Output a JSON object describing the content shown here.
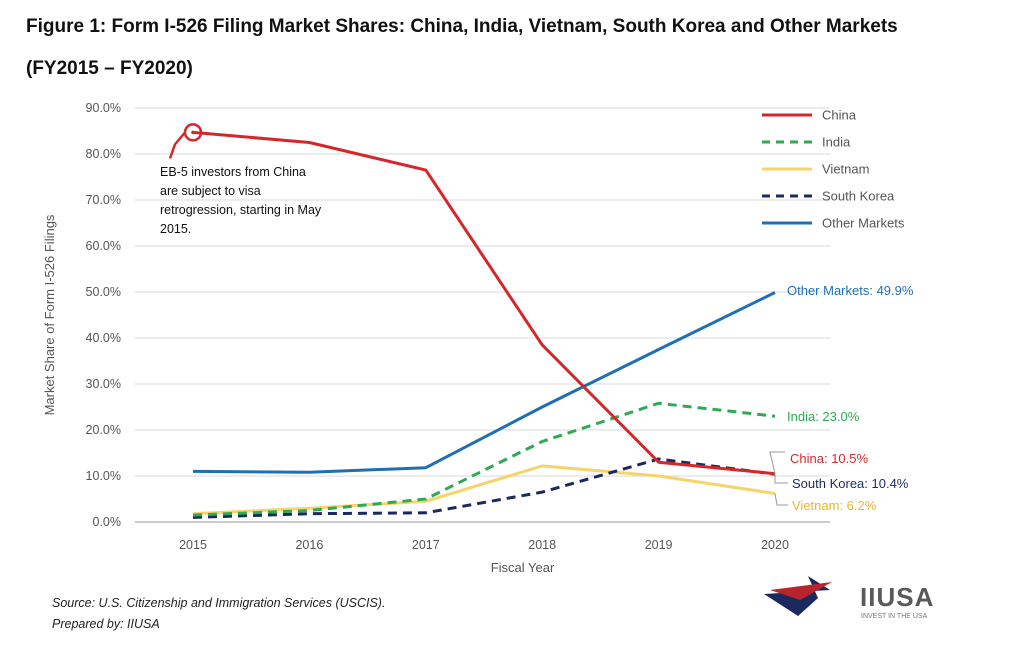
{
  "title_line1": "Figure 1: Form I-526 Filing Market Shares: China, India, Vietnam, South Korea and Other Markets",
  "title_line2": "(FY2015 – FY2020)",
  "source_line1": "Source: U.S. Citizenship and Immigration Services (USCIS).",
  "source_line2": "Prepared by: IIUSA",
  "logo": {
    "name": "IIUSA",
    "tagline": "INVEST IN THE USA"
  },
  "chart_data": {
    "type": "line",
    "xlabel": "Fiscal Year",
    "ylabel": "Market Share of Form I-526 Filings",
    "ylim": [
      0,
      90
    ],
    "y_ticks": [
      "0.0%",
      "10.0%",
      "20.0%",
      "30.0%",
      "40.0%",
      "50.0%",
      "60.0%",
      "70.0%",
      "80.0%",
      "90.0%"
    ],
    "categories": [
      "2015",
      "2016",
      "2017",
      "2018",
      "2019",
      "2020"
    ],
    "grid": "horizontal",
    "legend_position": "top-right",
    "series": [
      {
        "name": "China",
        "color": "#d7262a",
        "dash": "solid",
        "values": [
          84.7,
          82.5,
          76.5,
          38.5,
          13.0,
          10.5
        ],
        "end_label": "China: 10.5%"
      },
      {
        "name": "India",
        "color": "#2eaa52",
        "dash": "dashed",
        "values": [
          1.5,
          2.5,
          5.0,
          17.5,
          25.8,
          23.0
        ],
        "end_label": "India: 23.0%"
      },
      {
        "name": "Vietnam",
        "color": "#f5d46a",
        "dash": "solid",
        "values": [
          1.8,
          3.0,
          4.5,
          12.2,
          10.0,
          6.2
        ],
        "end_label": "Vietnam: 6.2%"
      },
      {
        "name": "South Korea",
        "color": "#1b2a5e",
        "dash": "dashed",
        "values": [
          1.0,
          1.8,
          2.0,
          6.5,
          13.7,
          10.4
        ],
        "end_label": "South Korea: 10.4%"
      },
      {
        "name": "Other Markets",
        "color": "#1f6fb2",
        "dash": "solid",
        "values": [
          11.0,
          10.8,
          11.8,
          25.0,
          37.5,
          49.9
        ],
        "end_label": "Other Markets: 49.9%"
      }
    ],
    "annotation": {
      "lines": [
        "EB-5 investors from China",
        "are subject to visa",
        "retrogression, starting in May",
        "2015."
      ],
      "point_series": "China",
      "point_category": "2015"
    }
  }
}
